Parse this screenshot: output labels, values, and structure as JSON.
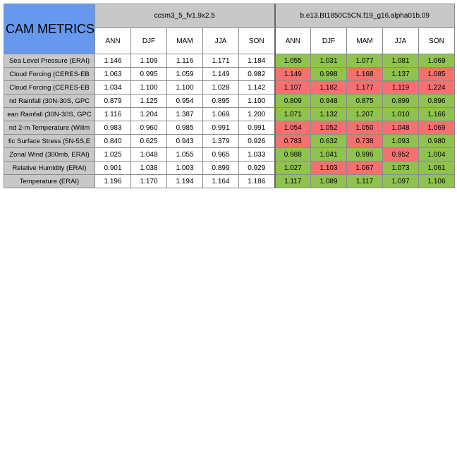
{
  "title": "CAM METRICS",
  "models": [
    "ccsm3_5_fv1.9x2.5",
    "b.e13.BI1850C5CN.f19_g16.alpha01b.09"
  ],
  "seasons": [
    "ANN",
    "DJF",
    "MAM",
    "JJA",
    "SON"
  ],
  "rows": [
    {
      "label": "Sea Level Pressure (ERAI)",
      "ref": [
        "1.146",
        "1.109",
        "1.116",
        "1.171",
        "1.184"
      ],
      "test": [
        "1.055",
        "1.031",
        "1.077",
        "1.081",
        "1.069"
      ],
      "status": [
        "good",
        "good",
        "good",
        "good",
        "good"
      ]
    },
    {
      "label": "Cloud Forcing (CERES-EB",
      "ref": [
        "1.063",
        "0.995",
        "1.059",
        "1.149",
        "0.982"
      ],
      "test": [
        "1.149",
        "0.998",
        "1.168",
        "1.137",
        "1.085"
      ],
      "status": [
        "bad",
        "good",
        "bad",
        "good",
        "bad"
      ]
    },
    {
      "label": "Cloud Forcing (CERES-EB",
      "ref": [
        "1.034",
        "1.100",
        "1.100",
        "1.028",
        "1.142"
      ],
      "test": [
        "1.107",
        "1.182",
        "1.177",
        "1.119",
        "1.224"
      ],
      "status": [
        "bad",
        "bad",
        "bad",
        "bad",
        "bad"
      ]
    },
    {
      "label": "nd Rainfall (30N-30S, GPC",
      "ref": [
        "0.879",
        "1.125",
        "0.954",
        "0.895",
        "1.100"
      ],
      "test": [
        "0.809",
        "0.948",
        "0.875",
        "0.899",
        "0.896"
      ],
      "status": [
        "good",
        "good",
        "good",
        "good",
        "good"
      ]
    },
    {
      "label": "ean Rainfall (30N-30S, GPC",
      "ref": [
        "1.116",
        "1.204",
        "1.387",
        "1.069",
        "1.200"
      ],
      "test": [
        "1.071",
        "1.132",
        "1.207",
        "1.010",
        "1.166"
      ],
      "status": [
        "good",
        "good",
        "good",
        "good",
        "good"
      ]
    },
    {
      "label": "nd 2-m Temperature (Willm",
      "ref": [
        "0.983",
        "0.960",
        "0.985",
        "0.991",
        "0.991"
      ],
      "test": [
        "1.054",
        "1.052",
        "1.050",
        "1.048",
        "1.069"
      ],
      "status": [
        "bad",
        "bad",
        "bad",
        "bad",
        "bad"
      ]
    },
    {
      "label": "fic Surface Stress (5N-5S,E",
      "ref": [
        "0.840",
        "0.625",
        "0.943",
        "1.379",
        "0.926"
      ],
      "test": [
        "0.783",
        "0.632",
        "0.738",
        "1.093",
        "0.980"
      ],
      "status": [
        "bad",
        "good",
        "bad",
        "good",
        "good"
      ]
    },
    {
      "label": "Zonal Wind (300mb, ERAI)",
      "ref": [
        "1.025",
        "1.048",
        "1.055",
        "0.965",
        "1.033"
      ],
      "test": [
        "0.988",
        "1.041",
        "0.996",
        "0.952",
        "1.004"
      ],
      "status": [
        "good",
        "good",
        "good",
        "bad",
        "good"
      ]
    },
    {
      "label": "Relative Humidity (ERAI)",
      "ref": [
        "0.901",
        "1.038",
        "1.003",
        "0.899",
        "0.929"
      ],
      "test": [
        "1.027",
        "1.103",
        "1.067",
        "1.073",
        "1.061"
      ],
      "status": [
        "good",
        "bad",
        "bad",
        "good",
        "good"
      ]
    },
    {
      "label": "Temperature (ERAI)",
      "ref": [
        "1.196",
        "1.170",
        "1.194",
        "1.164",
        "1.186"
      ],
      "test": [
        "1.117",
        "1.089",
        "1.117",
        "1.097",
        "1.106"
      ],
      "status": [
        "good",
        "good",
        "good",
        "good",
        "good"
      ]
    }
  ],
  "colors": {
    "good": "#8fc24f",
    "bad": "#f4716f",
    "header": "#c8c8c8",
    "title": "#6699ee"
  }
}
